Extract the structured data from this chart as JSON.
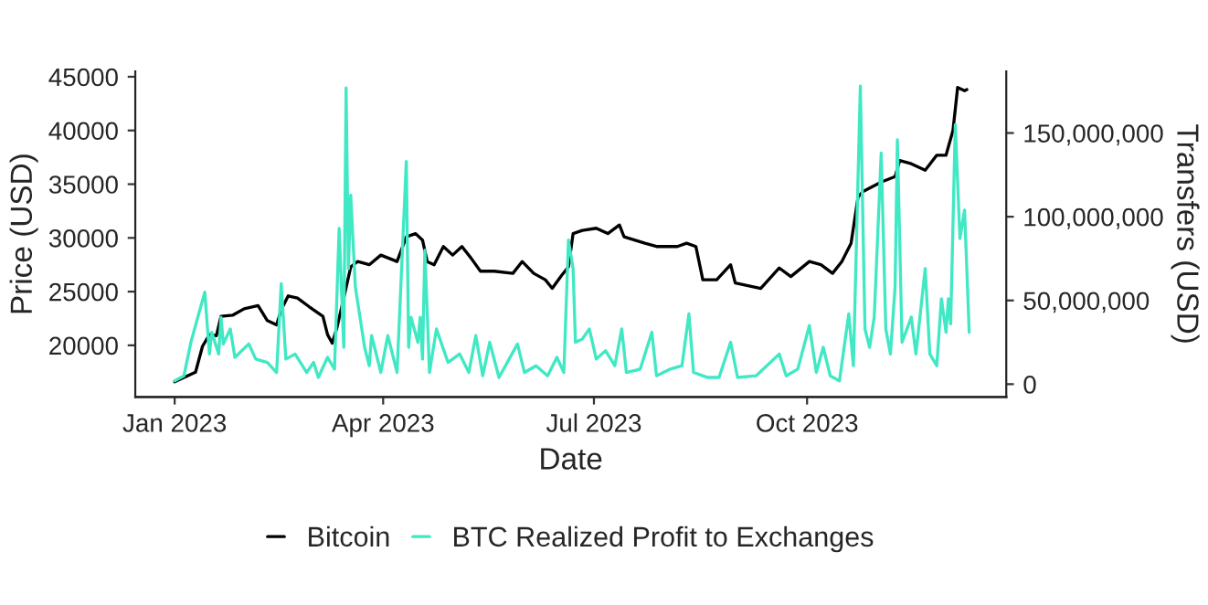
{
  "chart_data": {
    "type": "line",
    "xlabel": "Date",
    "ylabel": "Price (USD)",
    "y2label": "Transfers (USD)",
    "xlim": [
      "2022-12-15",
      "2023-12-26"
    ],
    "xticks": [
      {
        "value": "2023-01-01",
        "label": "Jan 2023"
      },
      {
        "value": "2023-04-01",
        "label": "Apr 2023"
      },
      {
        "value": "2023-07-01",
        "label": "Jul 2023"
      },
      {
        "value": "2023-10-01",
        "label": "Oct 2023"
      }
    ],
    "ylim": [
      15200,
      45500
    ],
    "yticks": [
      20000,
      25000,
      30000,
      35000,
      40000,
      45000
    ],
    "y2lim": [
      -7600000,
      186800000
    ],
    "y2ticks": [
      {
        "value": 0,
        "label": "0"
      },
      {
        "value": 50000000,
        "label": "50,000,000"
      },
      {
        "value": 100000000,
        "label": "100,000,000"
      },
      {
        "value": 150000000,
        "label": "150,000,000"
      }
    ],
    "grid": false,
    "legend": "bottom",
    "series": [
      {
        "name": "Bitcoin",
        "color": "#000000",
        "x": [
          "2023-01-01",
          "2023-01-04",
          "2023-01-10",
          "2023-01-13",
          "2023-01-16",
          "2023-01-19",
          "2023-01-21",
          "2023-01-26",
          "2023-01-31",
          "2023-02-06",
          "2023-02-10",
          "2023-02-14",
          "2023-02-16",
          "2023-02-19",
          "2023-02-23",
          "2023-02-28",
          "2023-03-06",
          "2023-03-08",
          "2023-03-10",
          "2023-03-12",
          "2023-03-15",
          "2023-03-18",
          "2023-03-21",
          "2023-03-26",
          "2023-03-31",
          "2023-04-07",
          "2023-04-11",
          "2023-04-15",
          "2023-04-18",
          "2023-04-20",
          "2023-04-23",
          "2023-04-27",
          "2023-05-01",
          "2023-05-05",
          "2023-05-09",
          "2023-05-13",
          "2023-05-19",
          "2023-05-27",
          "2023-05-31",
          "2023-06-05",
          "2023-06-10",
          "2023-06-13",
          "2023-06-17",
          "2023-06-20",
          "2023-06-22",
          "2023-06-26",
          "2023-07-02",
          "2023-07-07",
          "2023-07-12",
          "2023-07-14",
          "2023-07-23",
          "2023-07-28",
          "2023-08-06",
          "2023-08-10",
          "2023-08-14",
          "2023-08-17",
          "2023-08-23",
          "2023-08-29",
          "2023-08-31",
          "2023-09-11",
          "2023-09-19",
          "2023-09-24",
          "2023-10-02",
          "2023-10-07",
          "2023-10-12",
          "2023-10-16",
          "2023-10-20",
          "2023-10-23",
          "2023-10-25",
          "2023-11-02",
          "2023-11-08",
          "2023-11-10",
          "2023-11-15",
          "2023-11-21",
          "2023-11-26",
          "2023-11-30",
          "2023-12-03",
          "2023-12-05",
          "2023-12-08",
          "2023-12-09"
        ],
        "values": [
          16600,
          16900,
          17500,
          19900,
          21000,
          20900,
          22700,
          22800,
          23400,
          23700,
          22300,
          21900,
          23300,
          24600,
          24400,
          23600,
          22700,
          21000,
          20200,
          21600,
          24400,
          27300,
          27800,
          27500,
          28400,
          27800,
          30100,
          30400,
          29800,
          27800,
          27500,
          29200,
          28400,
          29200,
          28100,
          26900,
          26900,
          26700,
          27800,
          26700,
          26100,
          25300,
          26500,
          27300,
          30400,
          30700,
          30900,
          30400,
          31200,
          30100,
          29500,
          29200,
          29200,
          29500,
          29200,
          26100,
          26100,
          27500,
          25800,
          25300,
          27200,
          26400,
          27800,
          27500,
          26700,
          27800,
          29500,
          33800,
          34300,
          35200,
          35700,
          37200,
          36900,
          36300,
          37700,
          37700,
          40000,
          44000,
          43700,
          43800
        ]
      },
      {
        "name": "BTC Realized Profit to Exchanges",
        "color": "#40e8c4",
        "axis": "y2",
        "x": [
          "2023-01-01",
          "2023-01-05",
          "2023-01-08",
          "2023-01-14",
          "2023-01-16",
          "2023-01-17",
          "2023-01-20",
          "2023-01-21",
          "2023-01-22",
          "2023-01-25",
          "2023-01-27",
          "2023-02-02",
          "2023-02-05",
          "2023-02-10",
          "2023-02-14",
          "2023-02-16",
          "2023-02-18",
          "2023-02-22",
          "2023-02-27",
          "2023-03-02",
          "2023-03-04",
          "2023-03-08",
          "2023-03-11",
          "2023-03-13",
          "2023-03-15",
          "2023-03-16",
          "2023-03-17",
          "2023-03-18",
          "2023-03-20",
          "2023-03-24",
          "2023-03-26",
          "2023-03-27",
          "2023-03-31",
          "2023-04-03",
          "2023-04-07",
          "2023-04-11",
          "2023-04-12",
          "2023-04-13",
          "2023-04-16",
          "2023-04-17",
          "2023-04-18",
          "2023-04-19",
          "2023-04-21",
          "2023-04-24",
          "2023-04-29",
          "2023-05-04",
          "2023-05-08",
          "2023-05-11",
          "2023-05-14",
          "2023-05-17",
          "2023-05-21",
          "2023-05-29",
          "2023-06-01",
          "2023-06-06",
          "2023-06-11",
          "2023-06-15",
          "2023-06-18",
          "2023-06-20",
          "2023-06-22",
          "2023-06-23",
          "2023-06-26",
          "2023-06-29",
          "2023-07-02",
          "2023-07-06",
          "2023-07-10",
          "2023-07-13",
          "2023-07-15",
          "2023-07-21",
          "2023-07-26",
          "2023-07-28",
          "2023-08-03",
          "2023-08-08",
          "2023-08-11",
          "2023-08-13",
          "2023-08-19",
          "2023-08-24",
          "2023-08-29",
          "2023-09-01",
          "2023-09-09",
          "2023-09-19",
          "2023-09-22",
          "2023-09-27",
          "2023-10-02",
          "2023-10-05",
          "2023-10-08",
          "2023-10-11",
          "2023-10-15",
          "2023-10-17",
          "2023-10-19",
          "2023-10-21",
          "2023-10-24",
          "2023-10-26",
          "2023-10-28",
          "2023-10-30",
          "2023-11-02",
          "2023-11-04",
          "2023-11-06",
          "2023-11-08",
          "2023-11-09",
          "2023-11-11",
          "2023-11-15",
          "2023-11-17",
          "2023-11-21",
          "2023-11-23",
          "2023-11-26",
          "2023-11-28",
          "2023-11-30",
          "2023-12-01",
          "2023-12-02",
          "2023-12-04",
          "2023-12-06",
          "2023-12-08",
          "2023-12-10"
        ],
        "values": [
          2000000,
          5000000,
          25000000,
          55000000,
          18000000,
          31000000,
          18000000,
          40000000,
          24000000,
          33000000,
          16000000,
          24000000,
          15000000,
          13000000,
          7000000,
          60000000,
          15000000,
          18000000,
          7000000,
          13000000,
          4000000,
          16000000,
          9000000,
          93000000,
          22000000,
          177000000,
          69000000,
          113000000,
          58000000,
          22000000,
          11000000,
          29000000,
          7000000,
          29000000,
          7000000,
          133000000,
          22000000,
          40000000,
          25000000,
          40000000,
          15000000,
          80000000,
          7000000,
          33000000,
          13000000,
          18000000,
          7000000,
          29000000,
          5000000,
          25000000,
          4000000,
          24000000,
          7000000,
          11000000,
          5000000,
          16000000,
          7000000,
          86000000,
          69000000,
          25000000,
          27000000,
          33000000,
          15000000,
          20000000,
          11000000,
          33000000,
          7000000,
          9000000,
          31000000,
          5000000,
          9000000,
          11000000,
          42000000,
          7000000,
          4000000,
          4000000,
          25000000,
          4000000,
          5000000,
          18000000,
          5000000,
          9000000,
          35000000,
          7000000,
          22000000,
          5000000,
          2000000,
          22000000,
          42000000,
          11000000,
          178000000,
          33000000,
          22000000,
          40000000,
          138000000,
          33000000,
          18000000,
          58000000,
          146000000,
          25000000,
          40000000,
          18000000,
          69000000,
          18000000,
          11000000,
          51000000,
          31000000,
          51000000,
          36000000,
          155000000,
          87000000,
          104000000,
          31000000
        ]
      }
    ]
  }
}
